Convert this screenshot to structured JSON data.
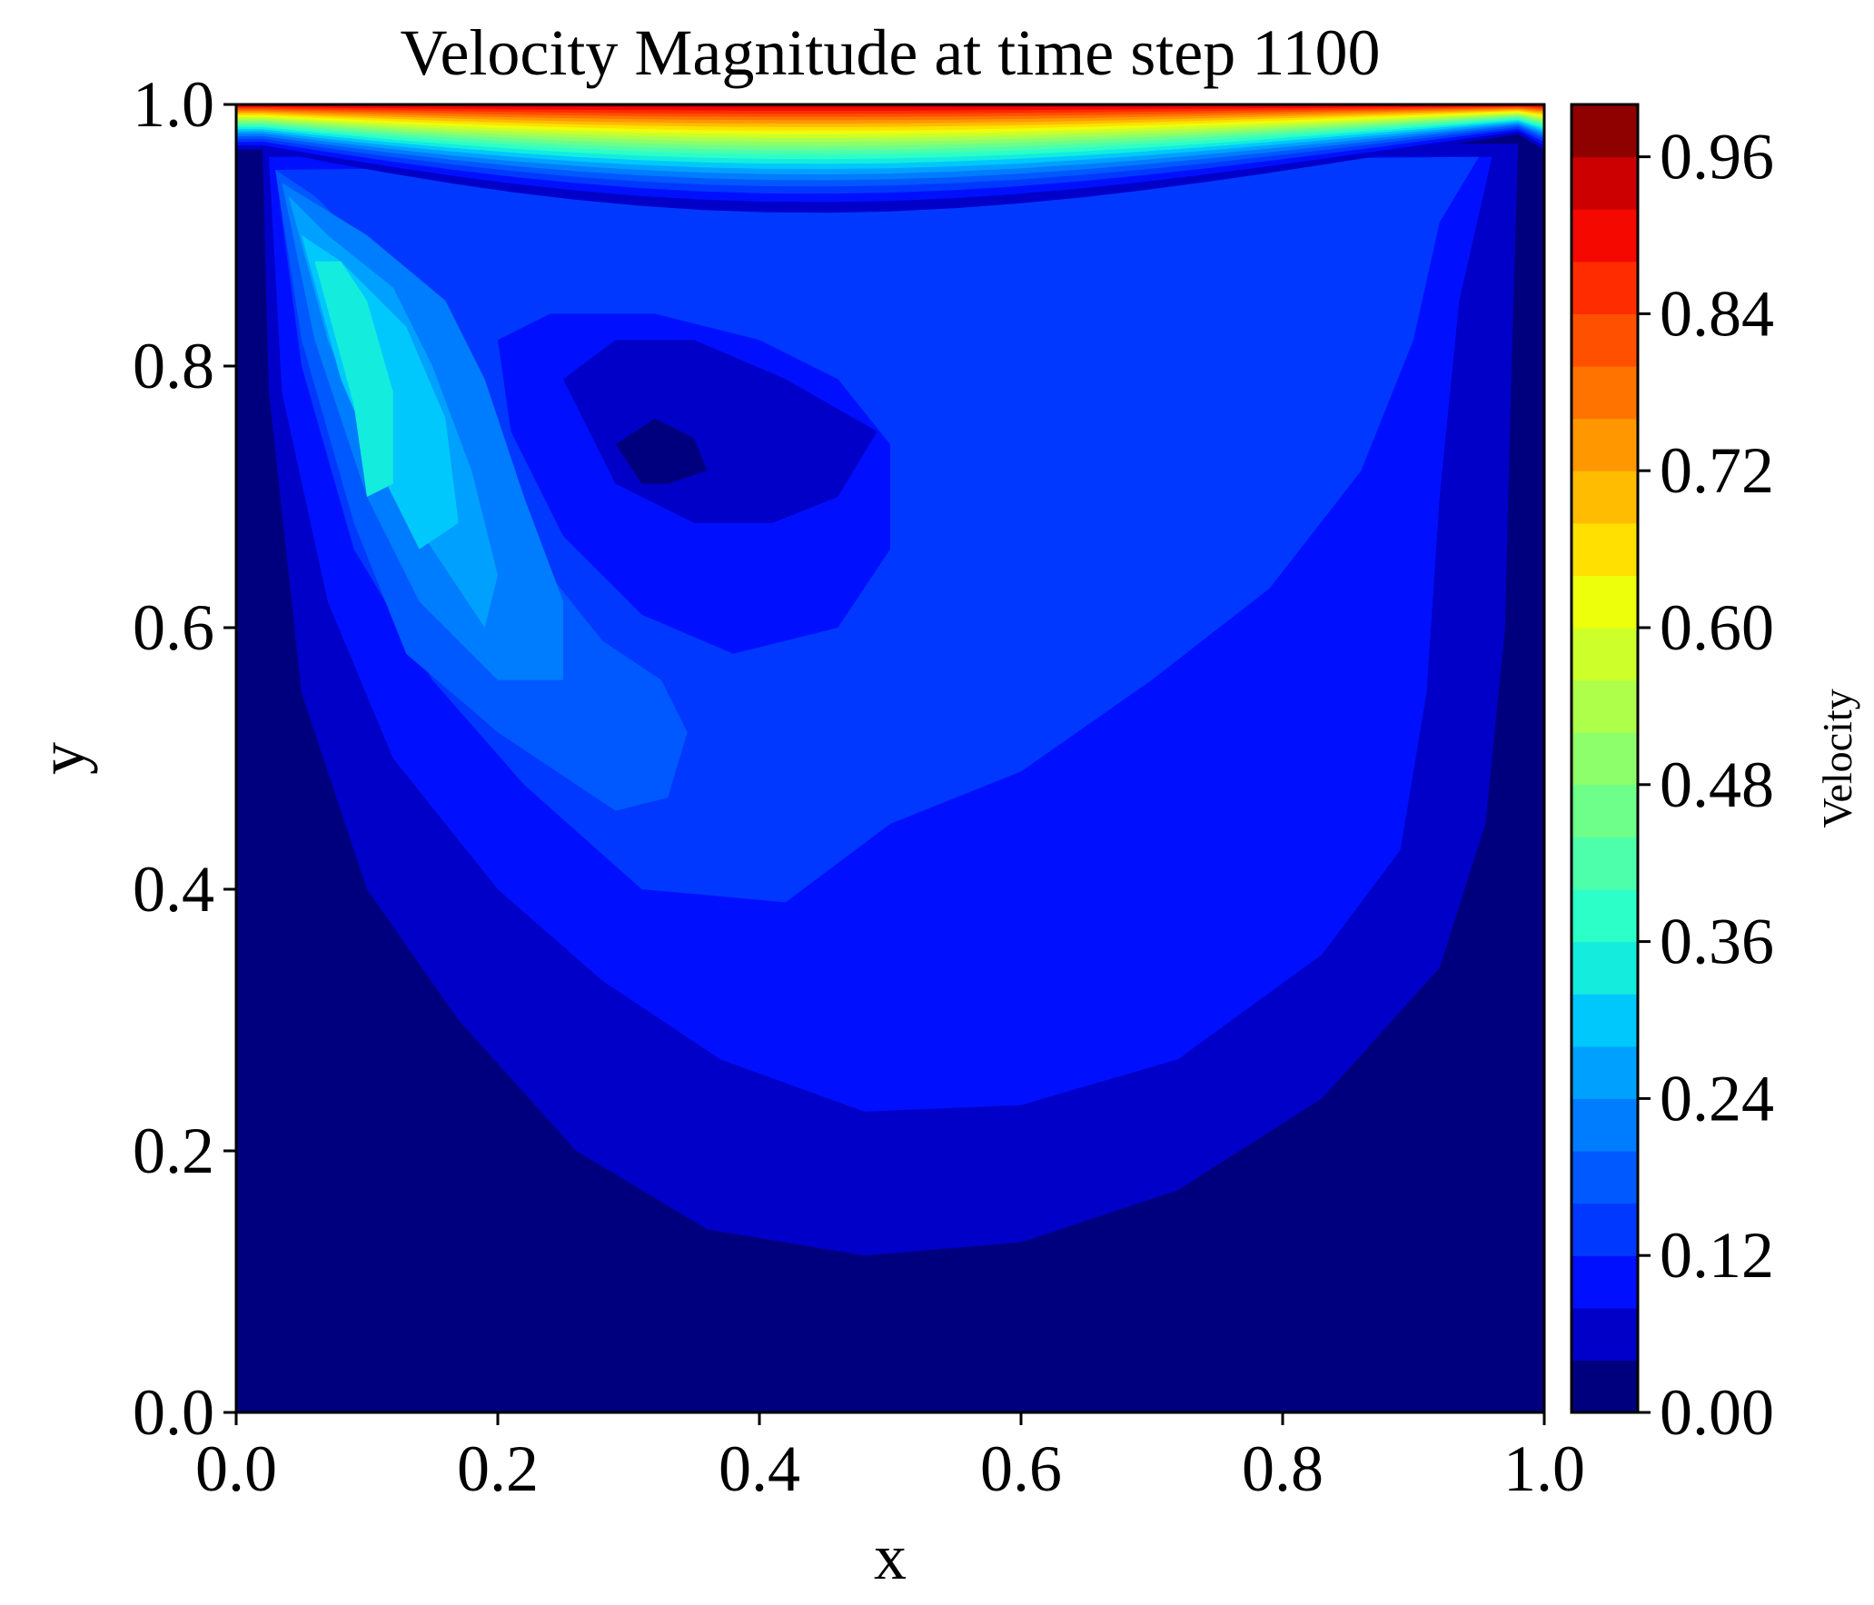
{
  "chart_data": {
    "type": "heatmap",
    "subtype": "filled-contour",
    "title": "Velocity Magnitude at time step 1100",
    "xlabel": "x",
    "ylabel": "y",
    "xlim": [
      0.0,
      1.0
    ],
    "ylim": [
      0.0,
      1.0
    ],
    "xticks": [
      "0.0",
      "0.2",
      "0.4",
      "0.6",
      "0.8",
      "1.0"
    ],
    "yticks": [
      "0.0",
      "0.2",
      "0.4",
      "0.6",
      "0.8",
      "1.0"
    ],
    "colormap": "jet",
    "grid": false,
    "colorbar": {
      "label": "Velocity",
      "range": [
        0.0,
        1.0
      ],
      "level_step": 0.04,
      "ticks": [
        "0.00",
        "0.12",
        "0.24",
        "0.36",
        "0.48",
        "0.60",
        "0.72",
        "0.84",
        "0.96"
      ]
    },
    "levels": [
      {
        "name": "level-0.00-0.04",
        "color": "#00007f"
      },
      {
        "name": "level-0.04-0.08",
        "color": "#0000c8"
      },
      {
        "name": "level-0.08-0.12",
        "color": "#0010ff"
      },
      {
        "name": "level-0.12-0.16",
        "color": "#0038ff"
      },
      {
        "name": "level-0.16-0.20",
        "color": "#0058ff"
      },
      {
        "name": "level-0.20-0.24",
        "color": "#007cff"
      },
      {
        "name": "level-0.24-0.28",
        "color": "#00a0ff"
      },
      {
        "name": "level-0.28-0.32",
        "color": "#00c8fc"
      },
      {
        "name": "level-0.32-0.36",
        "color": "#14ecde"
      },
      {
        "name": "level-0.36-0.40",
        "color": "#2dffc8"
      },
      {
        "name": "level-0.40-0.44",
        "color": "#4dffaa"
      },
      {
        "name": "level-0.44-0.48",
        "color": "#6dff8a"
      },
      {
        "name": "level-0.48-0.52",
        "color": "#8dff6a"
      },
      {
        "name": "level-0.52-0.56",
        "color": "#adff4a"
      },
      {
        "name": "level-0.56-0.60",
        "color": "#cdff2a"
      },
      {
        "name": "level-0.60-0.64",
        "color": "#edff0a"
      },
      {
        "name": "level-0.64-0.68",
        "color": "#ffe000"
      },
      {
        "name": "level-0.68-0.72",
        "color": "#ffbc00"
      },
      {
        "name": "level-0.72-0.76",
        "color": "#ff9800"
      },
      {
        "name": "level-0.76-0.80",
        "color": "#ff7400"
      },
      {
        "name": "level-0.80-0.84",
        "color": "#ff5000"
      },
      {
        "name": "level-0.84-0.88",
        "color": "#ff2c00"
      },
      {
        "name": "level-0.88-0.92",
        "color": "#f50800"
      },
      {
        "name": "level-0.92-0.96",
        "color": "#cc0000"
      },
      {
        "name": "level-0.96-1.00",
        "color": "#8f0000"
      }
    ],
    "regions": [
      {
        "name": "wall-region",
        "level": 0,
        "min": 0.0,
        "max": 0.04
      },
      {
        "name": "outer-vortex-band",
        "level": 1,
        "min": 0.04,
        "max": 0.08
      },
      {
        "name": "mid-vortex-band",
        "level": 2,
        "min": 0.08,
        "max": 0.12
      },
      {
        "name": "inner-vortex-band",
        "level": 3,
        "min": 0.12,
        "max": 0.16
      },
      {
        "name": "right-high-speed-lobe",
        "level": 3,
        "min": 0.12,
        "max": 0.16,
        "center": [
          0.76,
          0.7
        ]
      },
      {
        "name": "left-jet-band-1",
        "level": 4,
        "min": 0.16,
        "max": 0.2
      },
      {
        "name": "left-jet-band-2",
        "level": 5,
        "min": 0.2,
        "max": 0.24
      },
      {
        "name": "left-jet-band-3",
        "level": 6,
        "min": 0.24,
        "max": 0.28
      },
      {
        "name": "left-jet-band-4",
        "level": 7,
        "min": 0.28,
        "max": 0.32
      },
      {
        "name": "left-jet-core",
        "level": 8,
        "min": 0.32,
        "max": 0.36,
        "center": [
          0.09,
          0.78
        ]
      },
      {
        "name": "vortex-core-ring-1",
        "level": 2,
        "min": 0.08,
        "max": 0.12
      },
      {
        "name": "vortex-core-ring-2",
        "level": 1,
        "min": 0.04,
        "max": 0.08
      },
      {
        "name": "vortex-core",
        "level": 0,
        "min": 0.0,
        "max": 0.04,
        "center": [
          0.33,
          0.74
        ]
      },
      {
        "name": "lid-boundary-layer",
        "y_range": [
          0.88,
          1.0
        ],
        "min": 0.04,
        "max": 1.0
      }
    ]
  }
}
